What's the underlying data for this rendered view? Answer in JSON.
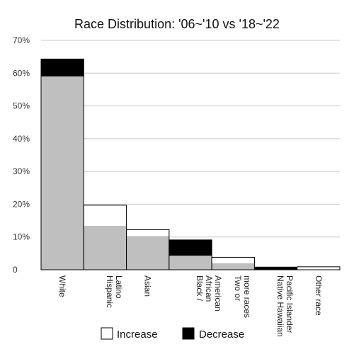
{
  "chart_data": {
    "type": "bar",
    "title": "Race Distribution: '06~'10 vs '18~'22",
    "xlabel": "",
    "ylabel": "",
    "ylim": [
      0,
      70
    ],
    "y_ticks": [
      "0",
      "10%",
      "20%",
      "30%",
      "40%",
      "50%",
      "60%",
      "70%"
    ],
    "y_tick_values": [
      0,
      10,
      20,
      30,
      40,
      50,
      60,
      70
    ],
    "grid": true,
    "categories": [
      "White",
      "Hispanic Latino",
      "Asian",
      "Black / African American",
      "Two or more races",
      "Native Hawaiian Pacific Islander",
      "Other race"
    ],
    "category_label_lines": [
      [
        "White"
      ],
      [
        "Hispanic",
        "Latino"
      ],
      [
        "Asian"
      ],
      [
        "Black /",
        "African",
        "American"
      ],
      [
        "Two or",
        "more races"
      ],
      [
        "Native Hawaiian",
        "Pacific Islander"
      ],
      [
        "Other race"
      ]
    ],
    "series": [
      {
        "name": "Increase",
        "values": [
          0,
          6.3,
          1.9,
          0,
          1.8,
          0,
          0.9
        ]
      },
      {
        "name": "Decrease",
        "values": [
          5.3,
          0,
          0,
          4.8,
          0,
          0.8,
          0
        ]
      }
    ],
    "baseline_values": [
      59.0,
      13.4,
      10.3,
      4.3,
      2.0,
      0,
      0
    ],
    "legend": {
      "position": "bottom",
      "entries": [
        {
          "label": "Increase",
          "color": "#ffffff"
        },
        {
          "label": "Decrease",
          "color": "#000000"
        }
      ]
    },
    "colors": {
      "base": "#bfbfbf",
      "increase": "#ffffff",
      "decrease": "#000000",
      "grid": "#c8c8c8",
      "outline": "#000000"
    }
  }
}
